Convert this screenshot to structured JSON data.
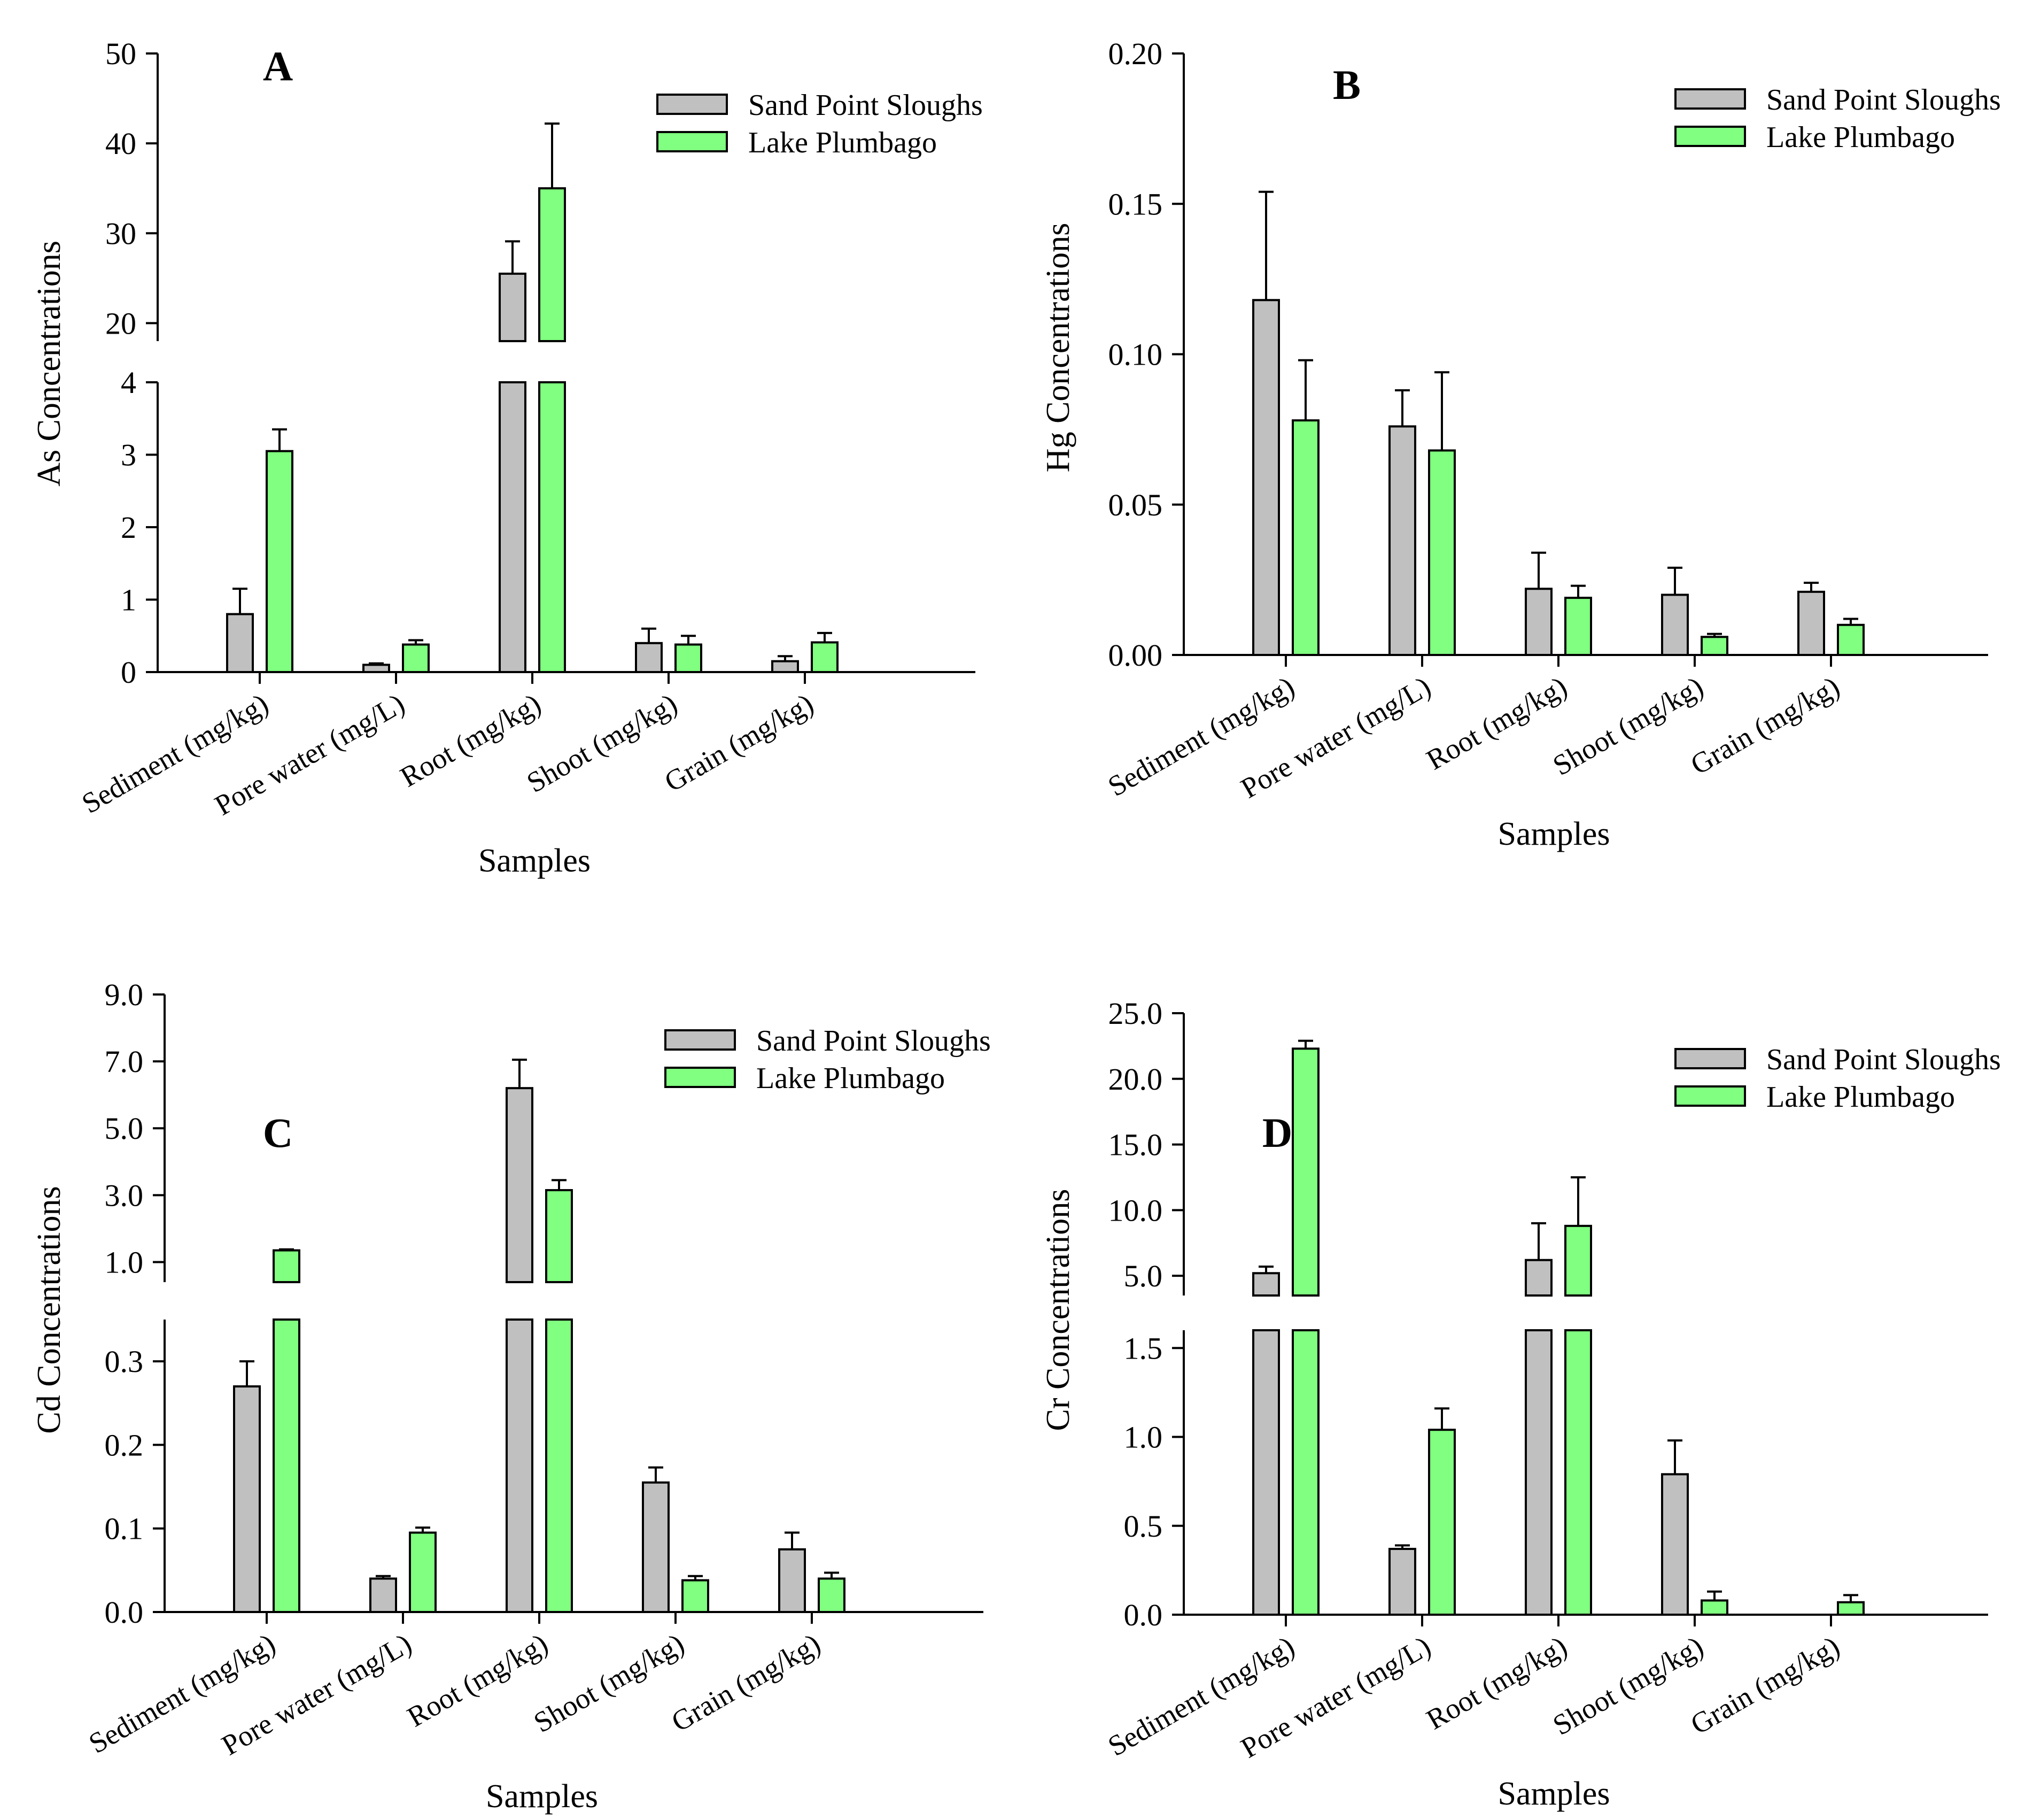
{
  "figure": {
    "legend": [
      "Sand Point Sloughs",
      "Lake Plumbago"
    ],
    "colors": {
      "sand_point_sloughs": "#c0c0c0",
      "lake_plumbago": "#80ff80",
      "axis": "#000000"
    }
  },
  "chart_data": [
    {
      "panel_label": "A",
      "type": "bar",
      "title": "",
      "xlabel": "Samples",
      "ylabel": "As Concentrations",
      "categories": [
        "Sediment (mg/kg)",
        "Pore water (mg/L)",
        "Root (mg/kg)",
        "Shoot (mg/kg)",
        "Grain (mg/kg)"
      ],
      "series": [
        {
          "name": "Sand Point Sloughs",
          "values": [
            0.8,
            0.1,
            25.5,
            0.4,
            0.15
          ],
          "errors": [
            0.35,
            0.02,
            3.6,
            0.2,
            0.07
          ]
        },
        {
          "name": "Lake Plumbago",
          "values": [
            3.05,
            0.38,
            35.0,
            0.38,
            0.41
          ],
          "errors": [
            0.3,
            0.06,
            7.2,
            0.12,
            0.13
          ]
        }
      ],
      "y_axis_break": true,
      "ylim_lower": [
        0,
        4
      ],
      "ylim_upper": [
        18,
        50
      ],
      "yticks_lower": [
        "0",
        "1",
        "2",
        "3",
        "4"
      ],
      "yticks_upper": [
        "20",
        "30",
        "40",
        "50"
      ],
      "legend_position": "top-right",
      "grid": false
    },
    {
      "panel_label": "B",
      "type": "bar",
      "title": "",
      "xlabel": "Samples",
      "ylabel": "Hg Concentrations",
      "categories": [
        "Sediment (mg/kg)",
        "Pore water (mg/L)",
        "Root (mg/kg)",
        "Shoot (mg/kg)",
        "Grain (mg/kg)"
      ],
      "series": [
        {
          "name": "Sand Point Sloughs",
          "values": [
            0.118,
            0.076,
            0.022,
            0.02,
            0.021
          ],
          "errors": [
            0.036,
            0.012,
            0.012,
            0.009,
            0.003
          ]
        },
        {
          "name": "Lake Plumbago",
          "values": [
            0.078,
            0.068,
            0.019,
            0.006,
            0.01
          ],
          "errors": [
            0.02,
            0.026,
            0.004,
            0.001,
            0.002
          ]
        }
      ],
      "y_axis_break": false,
      "ylim": [
        0,
        0.2
      ],
      "yticks": [
        "0.00",
        "0.05",
        "0.10",
        "0.15",
        "0.20"
      ],
      "legend_position": "top-right",
      "grid": false
    },
    {
      "panel_label": "C",
      "type": "bar",
      "title": "",
      "xlabel": "Samples",
      "ylabel": "Cd Concentrations",
      "categories": [
        "Sediment (mg/kg)",
        "Pore water (mg/L)",
        "Root (mg/kg)",
        "Shoot (mg/kg)",
        "Grain (mg/kg)"
      ],
      "series": [
        {
          "name": "Sand Point Sloughs",
          "values": [
            0.27,
            0.04,
            6.2,
            0.155,
            0.075
          ],
          "errors": [
            0.03,
            0.003,
            0.85,
            0.018,
            0.02
          ]
        },
        {
          "name": "Lake Plumbago",
          "values": [
            1.35,
            0.095,
            3.15,
            0.038,
            0.04
          ],
          "errors": [
            0.03,
            0.006,
            0.3,
            0.005,
            0.007
          ]
        }
      ],
      "y_axis_break": true,
      "ylim_lower": [
        0,
        0.35
      ],
      "ylim_upper": [
        0.4,
        9.0
      ],
      "yticks_lower": [
        "0.0",
        "0.1",
        "0.2",
        "0.3"
      ],
      "yticks_upper": [
        "1.0",
        "3.0",
        "5.0",
        "7.0",
        "9.0"
      ],
      "legend_position": "top-right",
      "grid": false
    },
    {
      "panel_label": "D",
      "type": "bar",
      "title": "",
      "xlabel": "Samples",
      "ylabel": "Cr Concentrations",
      "categories": [
        "Sediment (mg/kg)",
        "Pore water (mg/L)",
        "Root (mg/kg)",
        "Shoot (mg/kg)",
        "Grain (mg/kg)"
      ],
      "series": [
        {
          "name": "Sand Point Sloughs",
          "values": [
            5.2,
            0.37,
            6.2,
            0.79,
            0.0
          ],
          "errors": [
            0.5,
            0.02,
            2.8,
            0.19,
            0.0
          ]
        },
        {
          "name": "Lake Plumbago",
          "values": [
            22.3,
            1.04,
            8.8,
            0.08,
            0.07
          ],
          "errors": [
            0.6,
            0.12,
            3.7,
            0.05,
            0.04
          ]
        }
      ],
      "y_axis_break": true,
      "ylim_lower": [
        0,
        1.6
      ],
      "ylim_upper": [
        3.5,
        25.0
      ],
      "yticks_lower": [
        "0.0",
        "0.5",
        "1.0",
        "1.5"
      ],
      "yticks_upper": [
        "5.0",
        "10.0",
        "15.0",
        "20.0",
        "25.0"
      ],
      "legend_position": "top-right",
      "grid": false
    }
  ]
}
